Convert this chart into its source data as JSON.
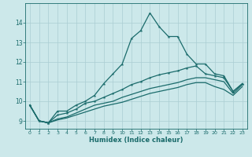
{
  "xlabel": "Humidex (Indice chaleur)",
  "bg_color": "#cce8ea",
  "grid_color": "#aacdd2",
  "line_color": "#1a6b6b",
  "x_values": [
    0,
    1,
    2,
    3,
    4,
    5,
    6,
    7,
    8,
    9,
    10,
    11,
    12,
    13,
    14,
    15,
    16,
    17,
    18,
    19,
    20,
    21,
    22,
    23
  ],
  "line1_y": [
    9.8,
    9.0,
    8.9,
    9.5,
    9.5,
    9.8,
    10.0,
    10.3,
    10.9,
    11.4,
    11.9,
    13.2,
    13.6,
    14.5,
    13.8,
    13.3,
    13.3,
    12.4,
    11.9,
    11.9,
    11.4,
    11.3,
    10.5,
    10.9
  ],
  "line2_y": [
    9.8,
    9.0,
    8.9,
    9.3,
    9.4,
    9.6,
    9.9,
    10.0,
    10.2,
    10.4,
    10.6,
    10.85,
    11.0,
    11.2,
    11.35,
    11.45,
    11.55,
    11.7,
    11.8,
    11.4,
    11.3,
    11.2,
    10.5,
    10.9
  ],
  "line3_y": [
    9.8,
    9.0,
    8.9,
    9.1,
    9.2,
    9.4,
    9.6,
    9.8,
    9.9,
    10.0,
    10.2,
    10.35,
    10.5,
    10.65,
    10.75,
    10.85,
    10.95,
    11.1,
    11.2,
    11.2,
    11.1,
    11.0,
    10.4,
    10.85
  ],
  "line4_y": [
    9.8,
    9.0,
    8.9,
    9.05,
    9.15,
    9.3,
    9.45,
    9.6,
    9.75,
    9.85,
    9.95,
    10.1,
    10.25,
    10.4,
    10.5,
    10.6,
    10.7,
    10.85,
    10.95,
    10.95,
    10.75,
    10.6,
    10.3,
    10.75
  ],
  "ylim": [
    8.6,
    15.0
  ],
  "yticks": [
    9,
    10,
    11,
    12,
    13,
    14
  ],
  "xlim": [
    -0.5,
    23.5
  ],
  "xticks": [
    0,
    1,
    2,
    3,
    4,
    5,
    6,
    7,
    8,
    9,
    10,
    11,
    12,
    13,
    14,
    15,
    16,
    17,
    18,
    19,
    20,
    21,
    22,
    23
  ]
}
